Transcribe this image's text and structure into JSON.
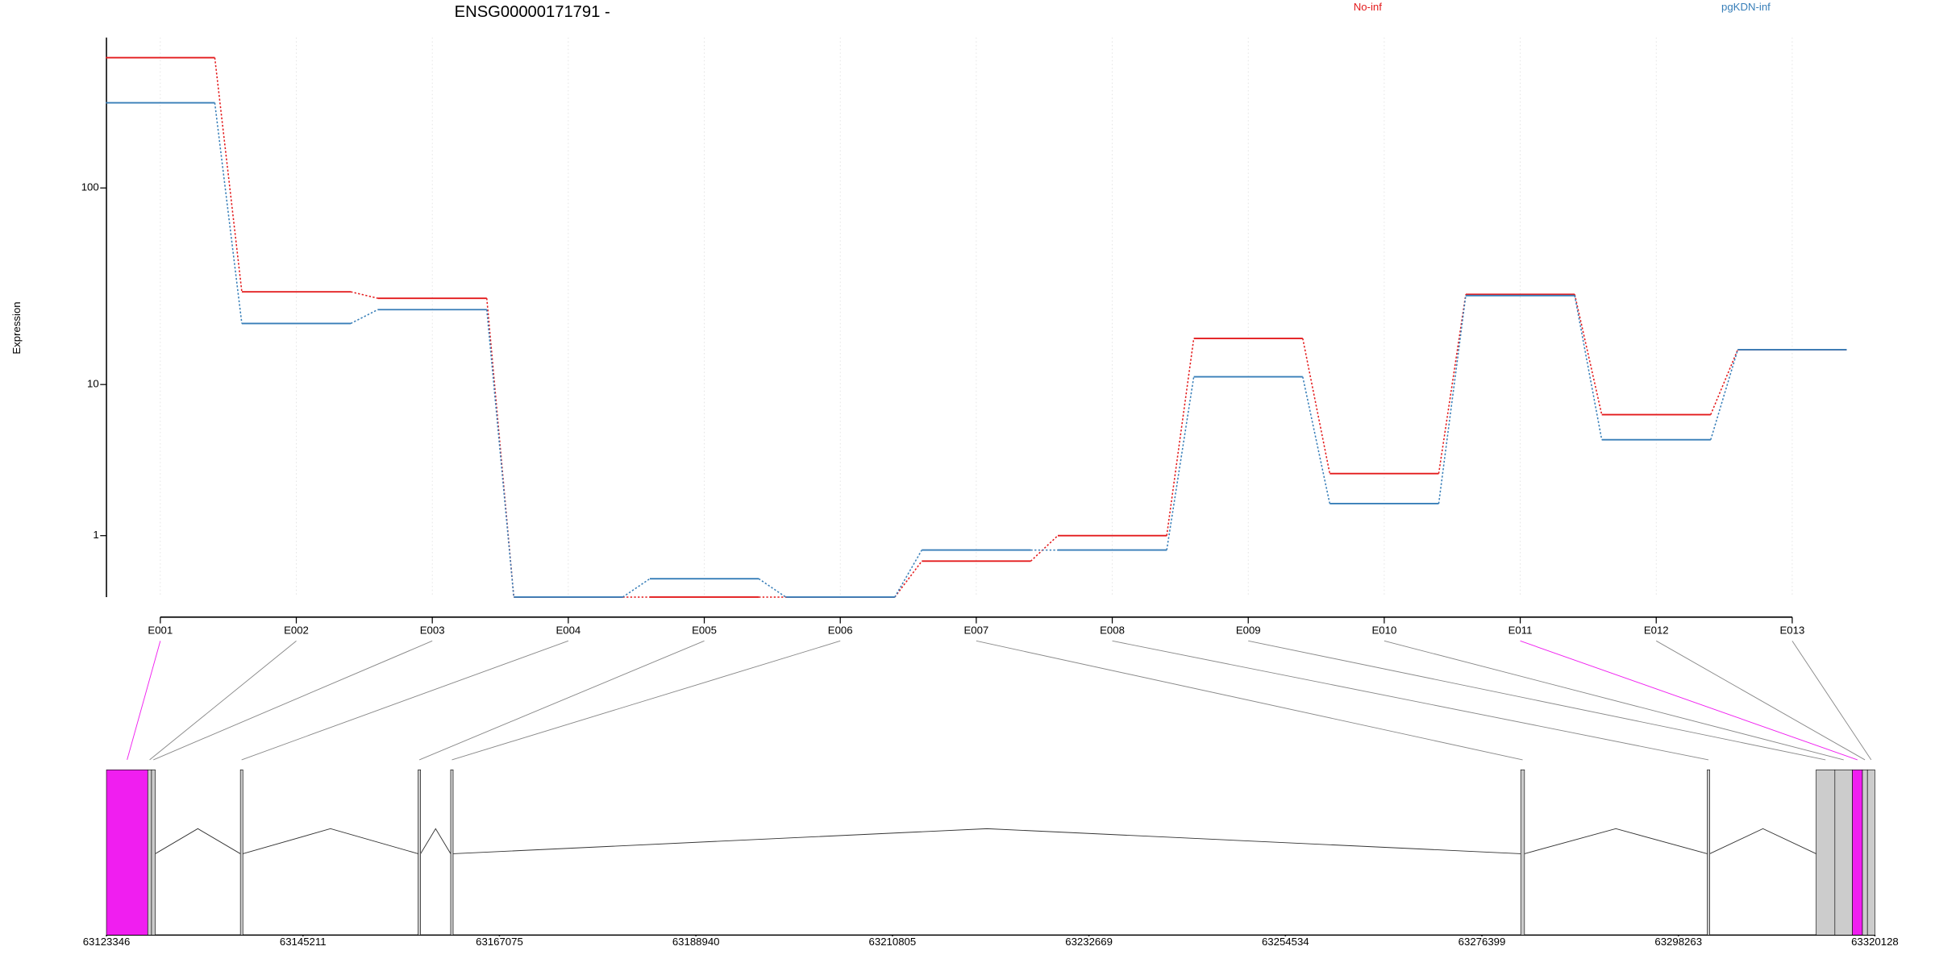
{
  "chart_data": [
    {
      "type": "step",
      "title": "ENSG00000171791 -",
      "ylabel": "Expression",
      "yscale": "log1p",
      "categories": [
        "E001",
        "E002",
        "E003",
        "E004",
        "E005",
        "E006",
        "E007",
        "E008",
        "E009",
        "E010",
        "E011",
        "E012",
        "E013"
      ],
      "series": [
        {
          "name": "No-inf",
          "color": "#e31a1c",
          "values": [
            438,
            30.3,
            28.1,
            0,
            0,
            0,
            0.5,
            1.0,
            17.5,
            3.03,
            29.4,
            6.83,
            15.3
          ]
        },
        {
          "name": "pgKDN-inf",
          "color": "#377eb8",
          "values": [
            263,
            20.9,
            24.6,
            0,
            0.23,
            0,
            0.7,
            0.7,
            11.0,
            1.87,
            29.0,
            4.9,
            15.3
          ]
        }
      ],
      "ylim": [
        0,
        550
      ],
      "yticks": [
        1,
        10,
        100
      ],
      "grid": true,
      "legend": "top"
    },
    {
      "type": "gene_model",
      "xlim": [
        63123346,
        63320128
      ],
      "xticks": [
        63123346,
        63145211,
        63167075,
        63188940,
        63210805,
        63232669,
        63254534,
        63276399,
        63298263,
        63320128
      ],
      "exons": [
        {
          "start": 63123346,
          "end": 63127942,
          "color": "#f01ef0"
        },
        {
          "start": 63127942,
          "end": 63128360,
          "color": "#cccccc"
        },
        {
          "start": 63128360,
          "end": 63128778,
          "color": "#cccccc"
        },
        {
          "start": 63138248,
          "end": 63138527,
          "color": "#cccccc"
        },
        {
          "start": 63158024,
          "end": 63158303,
          "color": "#cccccc"
        },
        {
          "start": 63161645,
          "end": 63161924,
          "color": "#cccccc"
        },
        {
          "start": 63280721,
          "end": 63281139,
          "color": "#cccccc"
        },
        {
          "start": 63301473,
          "end": 63301752,
          "color": "#cccccc"
        },
        {
          "start": 63313589,
          "end": 63315678,
          "color": "#cccccc"
        },
        {
          "start": 63315678,
          "end": 63317628,
          "color": "#cccccc"
        },
        {
          "start": 63317628,
          "end": 63318742,
          "color": "#f01ef0"
        },
        {
          "start": 63318742,
          "end": 63319299,
          "color": "#cccccc"
        },
        {
          "start": 63319299,
          "end": 63320128,
          "color": "#cccccc"
        }
      ]
    }
  ]
}
